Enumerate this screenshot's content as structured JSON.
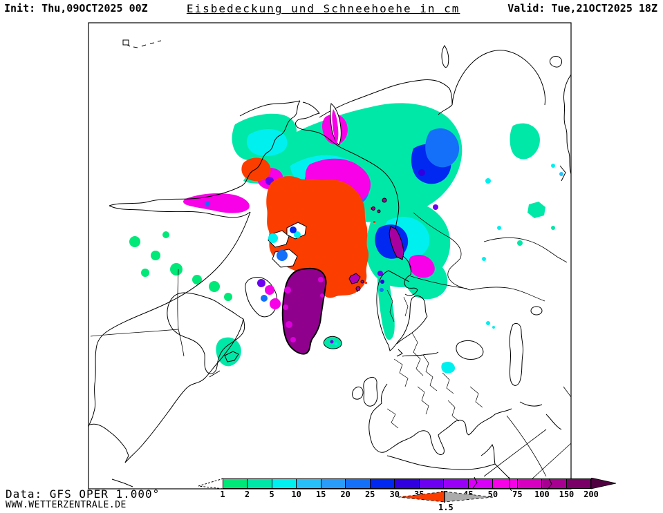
{
  "header": {
    "init": "Init: Thu,09OCT2025 00Z",
    "title": "Eisbedeckung und Schneehoehe in cm",
    "valid": "Valid: Tue,21OCT2025 18Z"
  },
  "footer": {
    "source": "Data: GFS OPER 1.000°",
    "website": "WWW.WETTERZENTRALE.DE"
  },
  "legend": {
    "unit": "cm",
    "ticks": [
      "1",
      "2",
      "5",
      "10",
      "15",
      "20",
      "25",
      "30",
      "35",
      "40",
      "45",
      "50",
      "75",
      "100",
      "150",
      "200"
    ],
    "segment_colors": [
      "#00E878",
      "#00E8A8",
      "#00F0F0",
      "#28C0F8",
      "#289CF8",
      "#1470F8",
      "#0028F0",
      "#3000E0",
      "#6C00F0",
      "#9800F8",
      "#D800F8",
      "#F800E8",
      "#D800C0",
      "#A80090",
      "#7A0068"
    ],
    "overflow_arrow_color": "#500040",
    "ice_marker": {
      "value": "1.5",
      "ice_color": "#FB3D00",
      "open_water_color": "#ABABAB"
    }
  },
  "map": {
    "projection": "Northern Hemisphere polar stereographic",
    "frame_color": "#000000",
    "background_color": "#FFFFFF",
    "palette": {
      "coastline": "#000000",
      "sea_ice": "#FB3D00",
      "greenland_ice": "#8F008D",
      "greenland_fringe": "#DC00DC",
      "svalbard_snow": "#B400B0",
      "novaya_zemlya_snow": "#A800A0"
    },
    "regions": [
      {
        "name": "arctic-sea-ice",
        "description": "Arctic Ocean sea ice cover",
        "color": "#FB3D00"
      },
      {
        "name": "greenland-ice-sheet",
        "description": "Greenland snow depth over 100 cm",
        "color": "#8F008D"
      },
      {
        "name": "siberia-snow",
        "description": "Heavy snow over NE and central Siberia",
        "colors": [
          "#00E8A8",
          "#00F0F0",
          "#1470F8",
          "#0028F0",
          "#F800E8"
        ]
      },
      {
        "name": "alaska-canada-snow",
        "description": "Snow over Alaska and Canadian Arctic",
        "colors": [
          "#00E878",
          "#00F0F0",
          "#1470F8",
          "#F800E8"
        ]
      },
      {
        "name": "scandinavia-snow",
        "description": "Snow along Scandinavian mountains",
        "colors": [
          "#00E8A8",
          "#6C00F0"
        ]
      }
    ]
  },
  "chart_data": {
    "type": "map",
    "title": "Eisbedeckung und Schneehoehe in cm",
    "model": "GFS OPER 1.000°",
    "init_time": "Thu,09OCT2025 00Z",
    "valid_time": "Tue,21OCT2025 18Z",
    "snow_depth_scale_cm": [
      1,
      2,
      5,
      10,
      15,
      20,
      25,
      30,
      35,
      40,
      45,
      50,
      75,
      100,
      150,
      200
    ],
    "ice_cover_threshold": 1.5
  }
}
